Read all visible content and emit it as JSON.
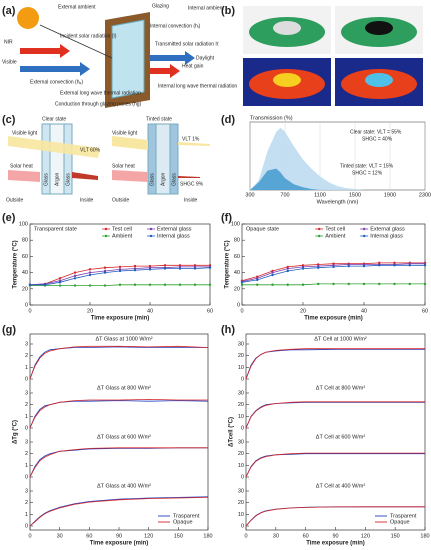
{
  "panel_labels": [
    "(a)",
    "(b)",
    "(c)",
    "(d)",
    "(e)",
    "(f)",
    "(g)",
    "(h)"
  ],
  "diagram_a": {
    "labels": [
      "External ambient",
      "Glazing",
      "Internal convection (hᵢ)",
      "Internal ambient",
      "Incident solar radiation (I)",
      "Transmitted solar radiation Iτ",
      "NIR",
      "Visible",
      "Daylight",
      "External convection (hₑ)",
      "Heat gain",
      "External long wave thermal radiation",
      "Internal long wave thermal radiation",
      "Conduction through glazing panes (hg)"
    ]
  },
  "diagram_c": {
    "labels": [
      "Clear state",
      "Tinted state",
      "Visible light",
      "VLT 60%",
      "Solar heat",
      "Outside",
      "Inside",
      "Visible light",
      "VLT 1%",
      "Solar heat",
      "SHGC 9%",
      "Outside",
      "Inside",
      "Glass",
      "Argon",
      "Glass",
      "Glass",
      "Argon",
      "Glass"
    ]
  },
  "chart_data": [
    {
      "type": "area",
      "ylabel": "Transmission (%)",
      "xlabel": "Wavelength (nm)",
      "x": [
        300,
        400,
        500,
        600,
        650,
        700,
        800,
        900,
        1000,
        1100,
        1200,
        1300,
        1400,
        1500,
        1600
      ],
      "series": [
        {
          "name": "Clear state",
          "color": "#bcdcf0",
          "values": [
            0,
            10,
            40,
            60,
            64,
            60,
            45,
            32,
            22,
            14,
            8,
            4,
            2,
            1,
            0
          ]
        },
        {
          "name": "Tinted state",
          "color": "#4a9fd0",
          "values": [
            0,
            8,
            20,
            22,
            18,
            12,
            6,
            3,
            1,
            0,
            0,
            0,
            0,
            0,
            0
          ]
        }
      ],
      "annotations": [
        "Clear state: VLT = 55%",
        "SHGC = 40%",
        "Tinted state: VLT = 15%",
        "SHGC = 12%"
      ],
      "xlim": [
        300,
        2300
      ],
      "xticks": [
        300,
        700,
        1100,
        1500,
        1900,
        2300
      ],
      "ylim": [
        0,
        70
      ]
    },
    {
      "type": "line",
      "note": "Transparent state",
      "xlabel": "Time exposure (min)",
      "ylabel": "Temperature (°C)",
      "x": [
        0,
        5,
        10,
        15,
        20,
        25,
        30,
        35,
        40,
        45,
        50,
        55,
        60
      ],
      "series": [
        {
          "name": "Test cell",
          "color": "#d62728",
          "values": [
            25,
            26,
            33,
            40,
            44,
            46,
            47,
            48,
            48,
            49,
            49,
            49,
            49
          ]
        },
        {
          "name": "Ambient",
          "color": "#2ca02c",
          "values": [
            24,
            24,
            24,
            24,
            24,
            24,
            25,
            25,
            25,
            25,
            25,
            25,
            25
          ]
        },
        {
          "name": "External glass",
          "color": "#7b3fb0",
          "values": [
            25,
            26,
            30,
            36,
            40,
            42,
            44,
            45,
            46,
            46,
            47,
            47,
            47
          ]
        },
        {
          "name": "Internal glass",
          "color": "#1f5fbf",
          "values": [
            25,
            25,
            28,
            33,
            37,
            40,
            42,
            43,
            44,
            45,
            45,
            45,
            46
          ]
        }
      ],
      "xlim": [
        0,
        60
      ],
      "xticks": [
        0,
        20,
        40,
        60
      ],
      "ylim": [
        0,
        100
      ],
      "yticks": [
        0,
        20,
        40,
        60,
        80,
        100
      ]
    },
    {
      "type": "line",
      "note": "Opaque state",
      "xlabel": "Time exposure (min)",
      "ylabel": "Temperature (°C)",
      "x": [
        0,
        5,
        10,
        15,
        20,
        25,
        30,
        35,
        40,
        45,
        50,
        55,
        60
      ],
      "series": [
        {
          "name": "Test cell",
          "color": "#d62728",
          "values": [
            30,
            35,
            42,
            47,
            49,
            50,
            51,
            51,
            51,
            52,
            52,
            52,
            52
          ]
        },
        {
          "name": "Ambient",
          "color": "#2ca02c",
          "values": [
            25,
            25,
            25,
            25,
            25,
            26,
            26,
            26,
            26,
            26,
            26,
            26,
            26
          ]
        },
        {
          "name": "External glass",
          "color": "#7b3fb0",
          "values": [
            29,
            33,
            40,
            45,
            47,
            48,
            49,
            50,
            50,
            50,
            50,
            51,
            51
          ]
        },
        {
          "name": "Internal glass",
          "color": "#1f5fbf",
          "values": [
            28,
            31,
            37,
            42,
            45,
            46,
            47,
            48,
            48,
            49,
            49,
            49,
            49
          ]
        }
      ],
      "xlim": [
        0,
        60
      ],
      "xticks": [
        0,
        20,
        40,
        60
      ],
      "ylim": [
        0,
        100
      ],
      "yticks": [
        0,
        20,
        40,
        60,
        80,
        100
      ]
    },
    {
      "type": "stacked_lines",
      "xlabel": "Time exposure (min)",
      "ylabel": "ΔTg (°C)",
      "x": [
        0,
        5,
        10,
        15,
        20,
        30,
        45,
        60,
        90,
        120,
        150,
        180
      ],
      "series": [
        {
          "name": "Trasparent",
          "color": "#1f3fbf"
        },
        {
          "name": "Opaque",
          "color": "#d62728"
        }
      ],
      "xlim": [
        0,
        180
      ],
      "xticks": [
        0,
        30,
        60,
        90,
        120,
        150,
        180
      ],
      "panels": [
        {
          "annotation": "ΔT Glass at 1000 W/m²",
          "ylim": [
            0,
            3
          ],
          "yticks": [
            0,
            1,
            2,
            3
          ],
          "values": [
            [
              0,
              1.2,
              1.9,
              2.3,
              2.5,
              2.6,
              2.7,
              2.7,
              2.75,
              2.7,
              2.7,
              2.7
            ],
            [
              0,
              1.1,
              1.8,
              2.2,
              2.4,
              2.6,
              2.75,
              2.8,
              2.8,
              2.75,
              2.8,
              2.7
            ]
          ]
        },
        {
          "annotation": "ΔT Glass at 800 W/m²",
          "ylim": [
            0,
            3
          ],
          "yticks": [
            0,
            1,
            2,
            3
          ],
          "values": [
            [
              0,
              1.0,
              1.6,
              1.9,
              2.0,
              2.2,
              2.3,
              2.3,
              2.35,
              2.3,
              2.35,
              2.3
            ],
            [
              0,
              0.9,
              1.5,
              1.8,
              2.0,
              2.2,
              2.35,
              2.4,
              2.4,
              2.45,
              2.4,
              2.4
            ]
          ]
        },
        {
          "annotation": "ΔT Glass at 600 W/m²",
          "ylim": [
            0,
            3
          ],
          "yticks": [
            0,
            1,
            2,
            3
          ],
          "values": [
            [
              0,
              0.9,
              1.5,
              1.8,
              2.0,
              2.2,
              2.3,
              2.4,
              2.45,
              2.45,
              2.5,
              2.5
            ],
            [
              0,
              0.8,
              1.4,
              1.7,
              1.9,
              2.2,
              2.35,
              2.45,
              2.5,
              2.5,
              2.5,
              2.5
            ]
          ]
        },
        {
          "annotation": "ΔT Glass at 400 W/m²",
          "ylim": [
            0,
            3
          ],
          "yticks": [
            0,
            1,
            2,
            3
          ],
          "values": [
            [
              0,
              0.4,
              0.8,
              1.1,
              1.3,
              1.6,
              1.9,
              2.1,
              2.3,
              2.4,
              2.45,
              2.5
            ],
            [
              0,
              0.35,
              0.75,
              1.05,
              1.25,
              1.55,
              1.85,
              2.05,
              2.25,
              2.35,
              2.4,
              2.45
            ]
          ]
        }
      ]
    },
    {
      "type": "stacked_lines",
      "xlabel": "Time exposure (min)",
      "ylabel": "ΔTcell (°C)",
      "x": [
        0,
        5,
        10,
        15,
        20,
        30,
        45,
        60,
        90,
        120,
        150,
        180
      ],
      "series": [
        {
          "name": "Trasparent",
          "color": "#1f3fbf"
        },
        {
          "name": "Opaque",
          "color": "#d62728"
        }
      ],
      "xlim": [
        0,
        180
      ],
      "xticks": [
        0,
        30,
        60,
        90,
        120,
        150,
        180
      ],
      "panels": [
        {
          "annotation": "ΔT Cell at 1000 W/m²",
          "ylim": [
            0,
            30
          ],
          "yticks": [
            0,
            10,
            20,
            30
          ],
          "values": [
            [
              0,
              12,
              18,
              21,
              23,
              24,
              25,
              25,
              25.5,
              25.5,
              25.5,
              25.5
            ],
            [
              0,
              11,
              17.5,
              21,
              23,
              24.5,
              25.5,
              26,
              26,
              26,
              26,
              26
            ]
          ]
        },
        {
          "annotation": "ΔT Cell at 800 W/m²",
          "ylim": [
            0,
            30
          ],
          "yticks": [
            0,
            10,
            20,
            30
          ],
          "values": [
            [
              0,
              10,
              15,
              18,
              20,
              21,
              21.5,
              22,
              22,
              22,
              22,
              22
            ],
            [
              0,
              9.5,
              14.5,
              17.5,
              19.5,
              21,
              22,
              22.5,
              22.5,
              22.5,
              22.5,
              22.5
            ]
          ]
        },
        {
          "annotation": "ΔT Cell at 600 W/m²",
          "ylim": [
            0,
            30
          ],
          "yticks": [
            0,
            10,
            20,
            30
          ],
          "values": [
            [
              0,
              9,
              14,
              16.5,
              18,
              19,
              19.5,
              20,
              20,
              20,
              20,
              20
            ],
            [
              0,
              8.5,
              13.5,
              16,
              17.5,
              19,
              20,
              20.5,
              20.5,
              20.5,
              20.5,
              20.5
            ]
          ]
        },
        {
          "annotation": "ΔT Cell at 400 W/m²",
          "ylim": [
            0,
            30
          ],
          "yticks": [
            0,
            10,
            20,
            30
          ],
          "values": [
            [
              0,
              5,
              9,
              11.5,
              13,
              14.5,
              15.5,
              16,
              16.5,
              16.5,
              16.5,
              16.5
            ],
            [
              0,
              4.8,
              8.7,
              11.2,
              12.8,
              14.3,
              15.4,
              15.9,
              16.4,
              16.5,
              16.5,
              16.5
            ]
          ]
        }
      ]
    }
  ]
}
